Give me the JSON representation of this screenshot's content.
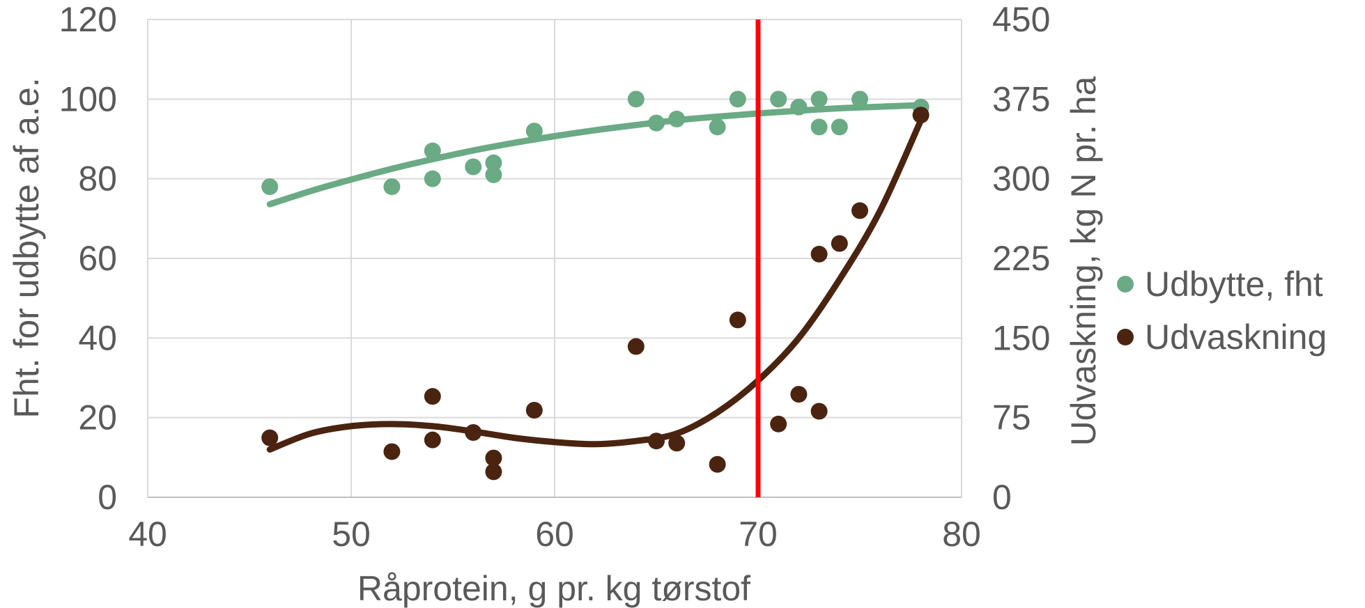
{
  "chart_data": {
    "type": "scatter",
    "title": "",
    "xlabel": "Råprotein, g pr. kg tørstof",
    "ylabel": "Fht. for udbytte af a.e.",
    "y2label": "Udvaskning, kg N pr. ha",
    "xlim": [
      40,
      80
    ],
    "ylim": [
      0,
      120
    ],
    "y2lim": [
      0,
      450
    ],
    "x_ticks": [
      "40",
      "50",
      "60",
      "70",
      "80"
    ],
    "y_ticks": [
      "0",
      "20",
      "40",
      "60",
      "80",
      "100",
      "120"
    ],
    "y2_ticks": [
      "0",
      "75",
      "150",
      "225",
      "300",
      "375",
      "450"
    ],
    "grid": true,
    "legend_position": "right",
    "reference_line": {
      "x": 70,
      "color": "#FF0000"
    },
    "series": [
      {
        "name": "Udbytte, fht",
        "axis": "left",
        "color": "#6AAA84",
        "points": [
          [
            46,
            78
          ],
          [
            52,
            78
          ],
          [
            54,
            87
          ],
          [
            54,
            80
          ],
          [
            56,
            83
          ],
          [
            57,
            84
          ],
          [
            57,
            81
          ],
          [
            59,
            92
          ],
          [
            64,
            100
          ],
          [
            65,
            94
          ],
          [
            66,
            95
          ],
          [
            68,
            93
          ],
          [
            69,
            100
          ],
          [
            71,
            100
          ],
          [
            72,
            98
          ],
          [
            73,
            100
          ],
          [
            73,
            93
          ],
          [
            74,
            93
          ],
          [
            75,
            100
          ],
          [
            78,
            98
          ]
        ],
        "trendline": [
          [
            46,
            73.6
          ],
          [
            48,
            76.9
          ],
          [
            50,
            79.8
          ],
          [
            52,
            82.5
          ],
          [
            54,
            84.9
          ],
          [
            56,
            87.1
          ],
          [
            58,
            89.0
          ],
          [
            60,
            90.7
          ],
          [
            62,
            92.2
          ],
          [
            64,
            93.5
          ],
          [
            66,
            94.7
          ],
          [
            68,
            95.6
          ],
          [
            70,
            96.4
          ],
          [
            72,
            97.1
          ],
          [
            74,
            97.7
          ],
          [
            76,
            98.1
          ],
          [
            78,
            98.5
          ]
        ]
      },
      {
        "name": "Udvaskning",
        "axis": "right",
        "color": "#4A2410",
        "points": [
          [
            46,
            56
          ],
          [
            52,
            43
          ],
          [
            54,
            95
          ],
          [
            54,
            54
          ],
          [
            56,
            61
          ],
          [
            57,
            37
          ],
          [
            57,
            24
          ],
          [
            59,
            82
          ],
          [
            64,
            142
          ],
          [
            65,
            53
          ],
          [
            66,
            51
          ],
          [
            68,
            31
          ],
          [
            69,
            167
          ],
          [
            71,
            69
          ],
          [
            72,
            97
          ],
          [
            73,
            229
          ],
          [
            73,
            81
          ],
          [
            74,
            239
          ],
          [
            75,
            270
          ],
          [
            78,
            360
          ]
        ],
        "trendline": [
          [
            46,
            45
          ],
          [
            48,
            60
          ],
          [
            50,
            67
          ],
          [
            52,
            69
          ],
          [
            54,
            67
          ],
          [
            56,
            62
          ],
          [
            58,
            56
          ],
          [
            60,
            52
          ],
          [
            62,
            50
          ],
          [
            64,
            53
          ],
          [
            66,
            60
          ],
          [
            68,
            80
          ],
          [
            70,
            110
          ],
          [
            72,
            150
          ],
          [
            74,
            205
          ],
          [
            76,
            270
          ],
          [
            78,
            355
          ]
        ]
      }
    ]
  }
}
